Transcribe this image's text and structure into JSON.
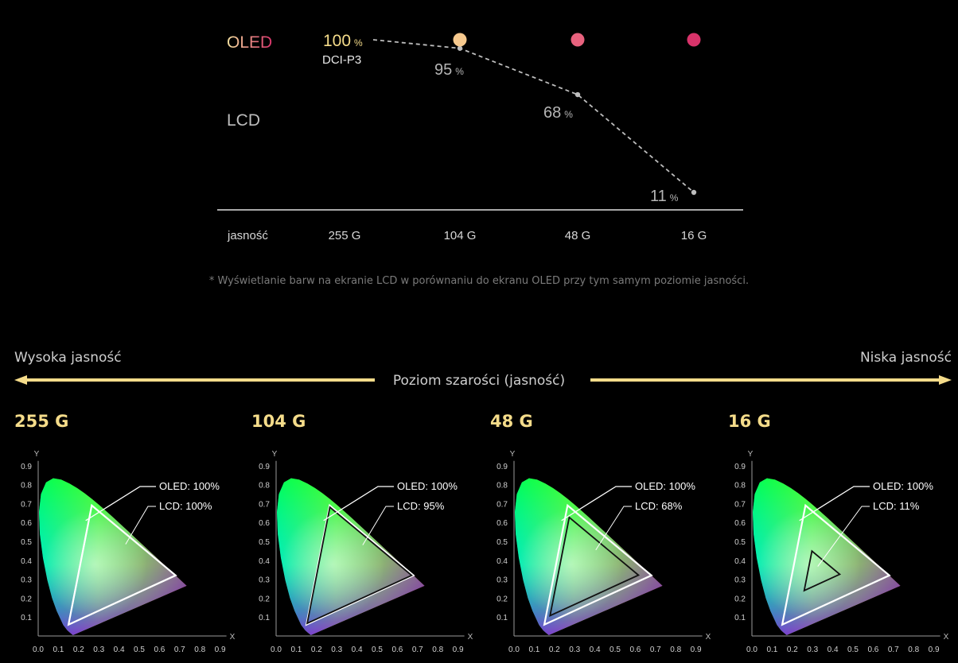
{
  "top_chart": {
    "oled_label": "OLED",
    "lcd_label": "LCD",
    "reference_label": "DCI-P3",
    "x_labels": [
      "jasność",
      "255 G",
      "104 G",
      "48 G",
      "16 G"
    ],
    "oled_values": [
      100,
      100,
      100,
      100
    ],
    "lcd_values": [
      100,
      95,
      68,
      11
    ],
    "value_labels": [
      {
        "number": "100",
        "unit": "%"
      },
      {
        "number": "95",
        "unit": "%"
      },
      {
        "number": "68",
        "unit": "%"
      },
      {
        "number": "11",
        "unit": "%"
      }
    ],
    "colors": {
      "oled_start": "#f6e3a0",
      "oled_end": "#d8336a",
      "lcd": "#bdbdbd",
      "highlight": "#f5dc8a"
    }
  },
  "caption": "* Wyświetlanie barw na ekranie LCD w porównaniu do ekranu OLED przy tym samym poziomie jasności.",
  "brightness_axis": {
    "left_label": "Wysoka jasność",
    "right_label": "Niska jasność",
    "title": "Poziom szarości (jasność)",
    "arrow_color": "#f5dc8a"
  },
  "chart_data": [
    {
      "type": "line",
      "x": [
        "255 G",
        "104 G",
        "48 G",
        "16 G"
      ],
      "series": [
        {
          "name": "OLED",
          "values": [
            100,
            100,
            100,
            100
          ]
        },
        {
          "name": "LCD",
          "values": [
            100,
            95,
            68,
            11
          ]
        }
      ],
      "ylabel": "",
      "ylim": [
        0,
        100
      ]
    }
  ],
  "gamut_panels": [
    {
      "title": "255 G",
      "oled_label": "OLED: 100%",
      "lcd_label": "LCD: 100%",
      "lcd_fraction": 1.0
    },
    {
      "title": "104 G",
      "oled_label": "OLED: 100%",
      "lcd_label": "LCD: 95%",
      "lcd_fraction": 0.95
    },
    {
      "title": "48 G",
      "oled_label": "OLED: 100%",
      "lcd_label": "LCD: 68%",
      "lcd_fraction": 0.68
    },
    {
      "title": "16 G",
      "oled_label": "OLED: 100%",
      "lcd_label": "LCD: 11%",
      "lcd_fraction": 0.11
    }
  ],
  "gamut_axes": {
    "x_axis_label": "X",
    "y_axis_label": "Y",
    "x_ticks": [
      "0.0",
      "0.1",
      "0.2",
      "0.3",
      "0.4",
      "0.5",
      "0.6",
      "0.7",
      "0.8",
      "0.9"
    ],
    "y_ticks": [
      "0.1",
      "0.2",
      "0.3",
      "0.4",
      "0.5",
      "0.6",
      "0.7",
      "0.8",
      "0.9"
    ],
    "xlim": [
      0,
      0.9
    ],
    "ylim": [
      0,
      0.9
    ]
  }
}
